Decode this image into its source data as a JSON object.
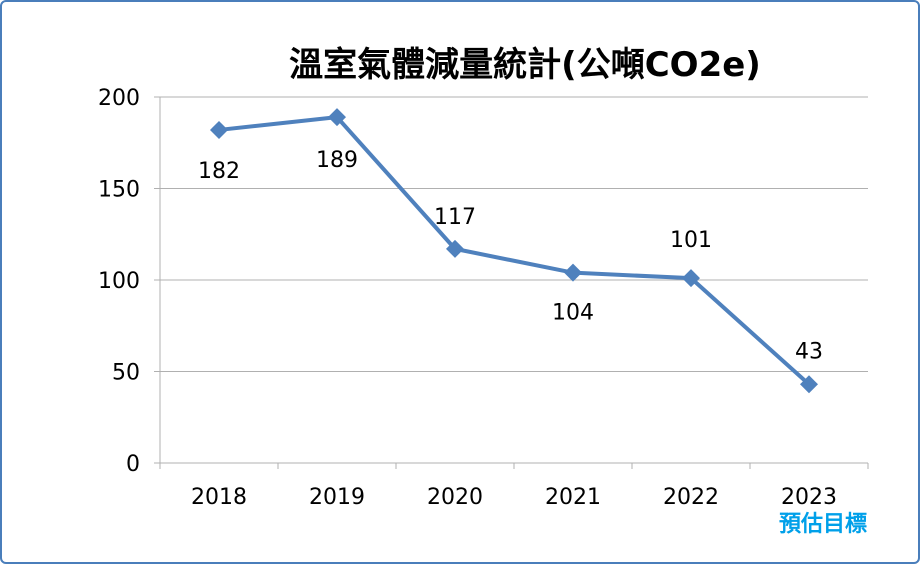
{
  "chart_data": {
    "type": "line",
    "title": "溫室氣體減量統計(公噸CO2e)",
    "categories": [
      "2018",
      "2019",
      "2020",
      "2021",
      "2022",
      "2023"
    ],
    "series": [
      {
        "values": [
          182,
          189,
          117,
          104,
          101,
          43
        ]
      }
    ],
    "data_labels": [
      "182",
      "189",
      "117",
      "104",
      "101",
      "43"
    ],
    "y_ticks": [
      "0",
      "50",
      "100",
      "150",
      "200"
    ],
    "ylim": [
      0,
      200
    ],
    "y_step": 50,
    "grid": true,
    "legend": "none",
    "annotation": "預估目標",
    "colors": {
      "line": "#4f81bd",
      "grid": "#b0b0b0",
      "annotation": "#00a0e9",
      "frame": "#4a7ebb",
      "text": "#000000"
    }
  }
}
